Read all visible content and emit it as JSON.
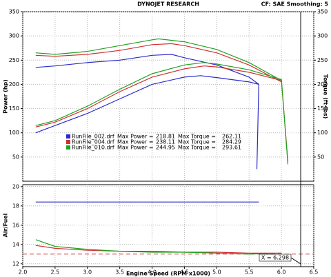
{
  "chart_data": [
    {
      "type": "line",
      "title": "DYNOJET RESEARCH",
      "subtitle": "CF: SAE  Smoothing: 5",
      "ylabel": "Power (hp)",
      "y2label": "Torque (ft-lbs)",
      "xlim": [
        2.0,
        6.5
      ],
      "ylim": [
        0,
        350
      ],
      "yticks": [
        50,
        100,
        150,
        200,
        250,
        300,
        350
      ],
      "y2lim": [
        0,
        350
      ],
      "y2ticks": [
        50,
        100,
        150,
        200,
        250,
        300,
        350
      ],
      "grid": true,
      "max_power_label": "Max Power =",
      "max_torque_label": "Max Torque =",
      "series": [
        {
          "name": "RunFile_002.drf",
          "color": "#2a2ac8",
          "max_power": 218.81,
          "max_torque": 262.11,
          "power_x": [
            2.2,
            2.5,
            3.0,
            3.5,
            4.0,
            4.5,
            4.75,
            5.0,
            5.5,
            5.65,
            5.62
          ],
          "power": [
            100,
            115,
            140,
            170,
            200,
            215,
            218,
            214,
            205,
            200,
            25
          ],
          "torque_x": [
            2.2,
            2.5,
            3.0,
            3.5,
            4.0,
            4.3,
            4.5,
            5.0,
            5.5,
            5.65
          ],
          "torque": [
            235,
            238,
            245,
            250,
            260,
            262,
            255,
            240,
            215,
            200
          ]
        },
        {
          "name": "RunFile_004.drf",
          "color": "#d03030",
          "max_power": 238.11,
          "max_torque": 284.29,
          "power_x": [
            2.2,
            2.5,
            3.0,
            3.5,
            4.0,
            4.5,
            4.8,
            5.0,
            5.5,
            6.0,
            6.1
          ],
          "power": [
            112,
            122,
            150,
            185,
            215,
            232,
            238,
            236,
            225,
            208,
            40
          ],
          "torque_x": [
            2.2,
            2.5,
            3.0,
            3.5,
            4.0,
            4.3,
            4.5,
            5.0,
            5.5,
            6.0
          ],
          "torque": [
            260,
            258,
            262,
            270,
            282,
            284,
            280,
            265,
            240,
            205
          ]
        },
        {
          "name": "RunFile_010.drf",
          "color": "#20a020",
          "max_power": 244.95,
          "max_torque": 293.61,
          "power_x": [
            2.2,
            2.5,
            3.0,
            3.5,
            4.0,
            4.5,
            4.8,
            5.0,
            5.5,
            6.0,
            6.1
          ],
          "power": [
            115,
            125,
            155,
            190,
            222,
            240,
            245,
            242,
            230,
            210,
            35
          ],
          "torque_x": [
            2.2,
            2.5,
            3.0,
            3.5,
            4.0,
            4.1,
            4.5,
            5.0,
            5.5,
            6.0
          ],
          "torque": [
            265,
            262,
            268,
            280,
            292,
            294,
            288,
            272,
            245,
            208
          ]
        }
      ]
    },
    {
      "type": "line",
      "ylabel": "Air/Fuel",
      "xlabel": "Engine Speed (RPM x1000)",
      "xlim": [
        2.0,
        6.5
      ],
      "xticks": [
        {
          "value": 2.0,
          "label": "2.0"
        },
        2.5,
        {
          "value": 3.0,
          "label": "3.0"
        },
        3.5,
        {
          "value": 4.0,
          "label": "4.0"
        },
        4.5,
        {
          "value": 5.0,
          "label": "5.0"
        },
        5.5,
        {
          "value": 6.0,
          "label": "6.0"
        },
        6.5
      ],
      "ylim": [
        11.7,
        20.2
      ],
      "yticks": [
        12,
        14,
        16,
        18,
        20
      ],
      "grid": true,
      "reference": 13,
      "reference_color": "#d03030",
      "cursor": {
        "value": 6.298,
        "label": "X = 6.298"
      },
      "series": [
        {
          "color": "#2a2ac8",
          "x": [
            2.2,
            3.0,
            4.0,
            5.0,
            5.65
          ],
          "values": [
            18.4,
            18.4,
            18.4,
            18.4,
            18.4
          ]
        },
        {
          "color": "#d03030",
          "x": [
            2.2,
            2.5,
            3.0,
            3.5,
            4.0,
            4.5,
            5.0,
            5.5,
            6.0
          ],
          "values": [
            13.9,
            13.6,
            13.4,
            13.3,
            13.3,
            13.2,
            13.2,
            13.1,
            13.1
          ]
        },
        {
          "color": "#20a020",
          "x": [
            2.2,
            2.5,
            3.0,
            3.5,
            4.0,
            4.5,
            5.0,
            5.5,
            6.0
          ],
          "values": [
            14.5,
            13.8,
            13.5,
            13.3,
            13.2,
            13.2,
            13.1,
            13.0,
            13.1
          ]
        }
      ]
    }
  ]
}
